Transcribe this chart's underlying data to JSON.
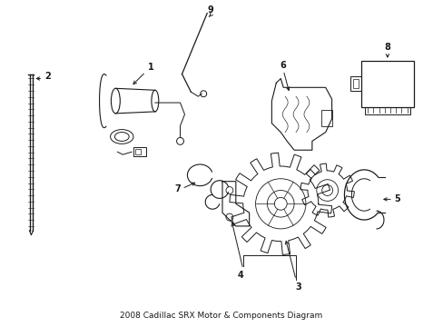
{
  "title": "2008 Cadillac SRX Motor & Components Diagram",
  "background_color": "#ffffff",
  "line_color": "#1a1a1a",
  "fig_width": 4.89,
  "fig_height": 3.6,
  "dpi": 100
}
